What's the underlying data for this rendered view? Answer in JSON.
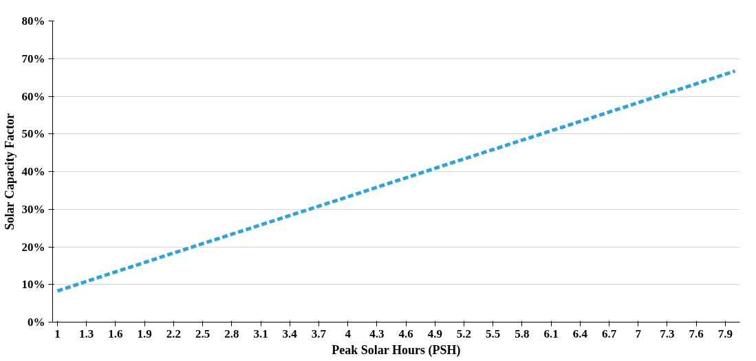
{
  "chart_data": {
    "type": "line",
    "xlabel": "Peak Solar Hours (PSH)",
    "ylabel": "Solar Capacity Factor",
    "x": [
      1,
      2,
      3,
      4,
      5,
      6,
      7,
      8
    ],
    "series": [
      {
        "color": "#2ba3df",
        "values": [
          8.3,
          16.7,
          25,
          33.3,
          41.7,
          50,
          58.3,
          66.7
        ]
      }
    ],
    "line_style": "dashed",
    "xlim": [
      0.95,
      8.05
    ],
    "xticks": [
      1,
      1.3,
      1.6,
      1.9,
      2.2,
      2.5,
      2.8,
      3.1,
      3.4,
      3.7,
      4,
      4.3,
      4.6,
      4.9,
      5.2,
      5.5,
      5.8,
      6.1,
      6.4,
      6.7,
      7,
      7.3,
      7.6,
      7.9
    ],
    "ylim": [
      0,
      80
    ],
    "yticks": [
      {
        "value": 0,
        "label": "0%"
      },
      {
        "value": 10,
        "label": "10%"
      },
      {
        "value": 20,
        "label": "20%"
      },
      {
        "value": 30,
        "label": "30%"
      },
      {
        "value": 40,
        "label": "40%"
      },
      {
        "value": 50,
        "label": "50%"
      },
      {
        "value": 60,
        "label": "60%"
      },
      {
        "value": 70,
        "label": "70%"
      },
      {
        "value": 80,
        "label": "80%"
      }
    ],
    "grid": "y"
  }
}
